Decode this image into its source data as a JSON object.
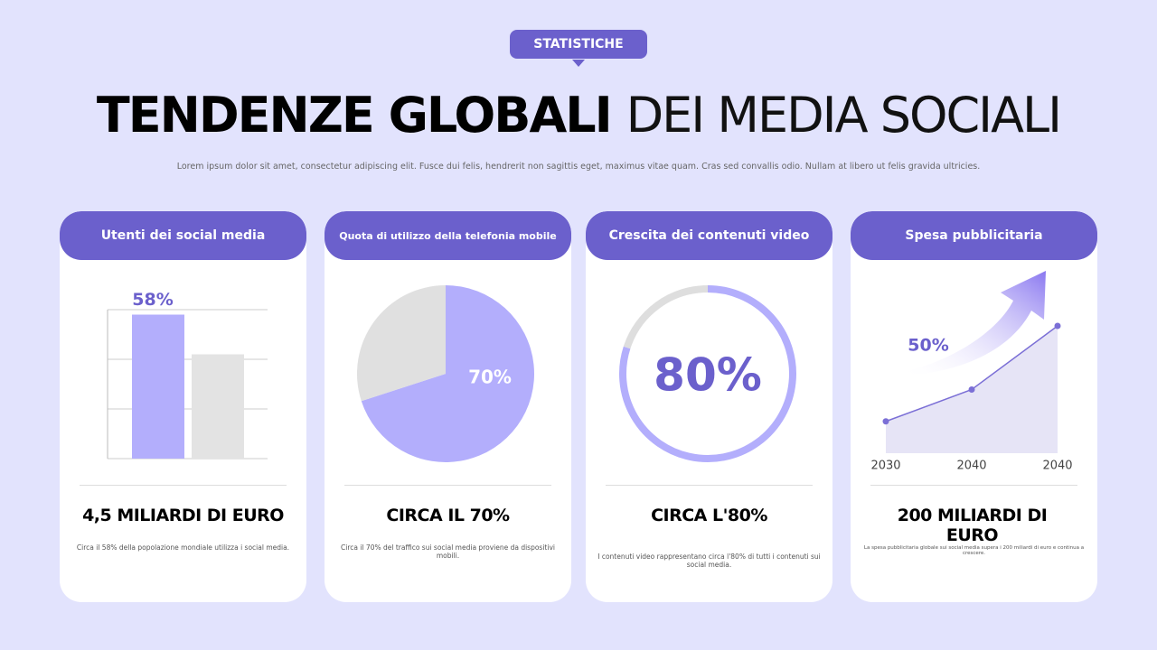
{
  "header": {
    "badge": "STATISTICHE",
    "title_bold": "TENDENZE GLOBALI",
    "title_light": "DEI MEDIA SOCIALI",
    "subtitle": "Lorem ipsum dolor sit amet, consectetur adipiscing elit. Fusce dui felis, hendrerit non sagittis eget, maximus vitae quam. Cras sed convallis odio. Nullam at libero ut felis gravida ultricies."
  },
  "cards": [
    {
      "title": "Utenti dei social media",
      "chart": {
        "type": "bar",
        "values": [
          58,
          42
        ],
        "value_labels": [
          "58%",
          null
        ],
        "colors": [
          "#b3aefc",
          "#e3e3e3"
        ],
        "ylim": [
          0,
          60
        ],
        "yticks": [
          0,
          20,
          40,
          60
        ],
        "grid": true
      },
      "headline": "4,5 MILIARDI DI EURO",
      "description": "Circa il 58% della popolazione mondiale utilizza i social media."
    },
    {
      "title": "Quota di utilizzo della telefonia mobile",
      "chart": {
        "type": "pie",
        "values": [
          70,
          30
        ],
        "value_labels": [
          "70%",
          null
        ],
        "colors": [
          "#b3aefc",
          "#e0e0e0"
        ]
      },
      "headline": "CIRCA IL 70%",
      "description": "Circa il 70% del traffico sui social media proviene da dispositivi mobili."
    },
    {
      "title": "Crescita dei contenuti video",
      "chart": {
        "type": "donut",
        "values": [
          80,
          20
        ],
        "value_labels": [
          "80%",
          null
        ],
        "colors": [
          "#b3aefc",
          "#dedede"
        ]
      },
      "headline": "CIRCA L'80%",
      "description": "I contenuti video rappresentano circa l'80% di tutti i contenuti sui social media."
    },
    {
      "title": "Spesa pubblicitaria",
      "chart": {
        "type": "area",
        "categories": [
          "2030",
          "2040",
          "2040"
        ],
        "values": [
          25,
          50,
          100
        ],
        "ylim": [
          0,
          100
        ],
        "annotation": "50%",
        "color": "#7b6fd6"
      },
      "headline": "200 MILIARDI DI EURO",
      "description": "La spesa pubblicitaria globale sui social media supera i 200 miliardi di euro e continua a crescere."
    }
  ]
}
